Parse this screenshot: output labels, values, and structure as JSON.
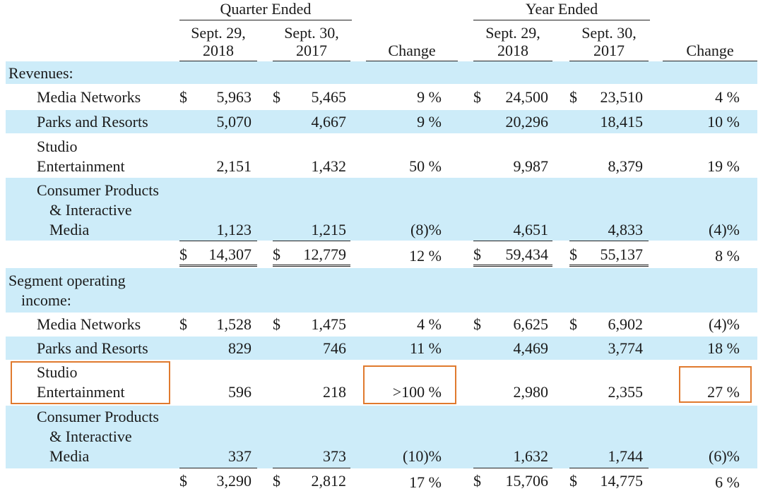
{
  "header": {
    "quarter_ended": "Quarter Ended",
    "year_ended": "Year Ended",
    "col_q1": [
      "Sept. 29,",
      "2018"
    ],
    "col_q2": [
      "Sept. 30,",
      "2017"
    ],
    "col_y1": [
      "Sept. 29,",
      "2018"
    ],
    "col_y2": [
      "Sept. 30,",
      "2017"
    ],
    "change": "Change"
  },
  "currency": "$",
  "revenues": {
    "label": "Revenues:",
    "rows": [
      {
        "label": [
          "Media Networks"
        ],
        "q18": "5,963",
        "q17": "5,465",
        "qchg": "9 %",
        "y18": "24,500",
        "y17": "23,510",
        "ychg": "4 %"
      },
      {
        "label": [
          "Parks and Resorts"
        ],
        "q18": "5,070",
        "q17": "4,667",
        "qchg": "9 %",
        "y18": "20,296",
        "y17": "18,415",
        "ychg": "10 %"
      },
      {
        "label": [
          "Studio",
          "Entertainment"
        ],
        "q18": "2,151",
        "q17": "1,432",
        "qchg": "50 %",
        "y18": "9,987",
        "y17": "8,379",
        "ychg": "19 %"
      },
      {
        "label": [
          "Consumer Products",
          "& Interactive",
          "Media"
        ],
        "q18": "1,123",
        "q17": "1,215",
        "qchg": "(8)%",
        "y18": "4,651",
        "y17": "4,833",
        "ychg": "(4)%"
      }
    ],
    "total": {
      "q18": "14,307",
      "q17": "12,779",
      "qchg": "12 %",
      "y18": "59,434",
      "y17": "55,137",
      "ychg": "8 %"
    }
  },
  "segment": {
    "label": [
      "Segment operating",
      "income:"
    ],
    "rows": [
      {
        "label": [
          "Media Networks"
        ],
        "q18": "1,528",
        "q17": "1,475",
        "qchg": "4 %",
        "y18": "6,625",
        "y17": "6,902",
        "ychg": "(4)%"
      },
      {
        "label": [
          "Parks and Resorts"
        ],
        "q18": "829",
        "q17": "746",
        "qchg": "11 %",
        "y18": "4,469",
        "y17": "3,774",
        "ychg": "18 %"
      },
      {
        "label": [
          "Studio",
          "Entertainment"
        ],
        "q18": "596",
        "q17": "218",
        "qchg": ">100 %",
        "y18": "2,980",
        "y17": "2,355",
        "ychg": "27 %"
      },
      {
        "label": [
          "Consumer Products",
          "& Interactive",
          "Media"
        ],
        "q18": "337",
        "q17": "373",
        "qchg": "(10)%",
        "y18": "1,632",
        "y17": "1,744",
        "ychg": "(6)%"
      }
    ],
    "total": {
      "q18": "3,290",
      "q17": "2,812",
      "qchg": "17 %",
      "y18": "15,706",
      "y17": "14,775",
      "ychg": "6 %"
    }
  },
  "colors": {
    "band": "#cdecf9",
    "highlight": "#e07a2e"
  }
}
